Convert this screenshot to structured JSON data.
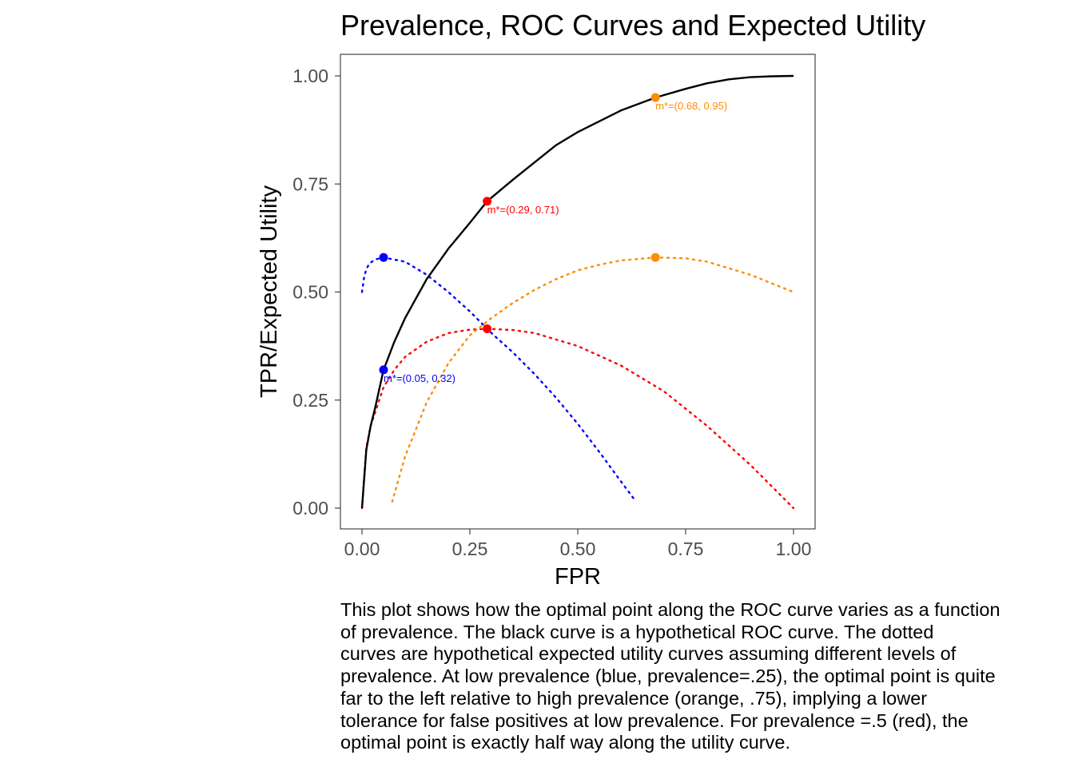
{
  "chart_data": {
    "type": "line",
    "title": "Prevalence, ROC Curves and Expected Utility",
    "xlabel": "FPR",
    "ylabel": "TPR/Expected Utility",
    "xlim": [
      0,
      1
    ],
    "ylim": [
      0,
      1
    ],
    "x_ticks": [
      "0.00",
      "0.25",
      "0.50",
      "0.75",
      "1.00"
    ],
    "y_ticks": [
      "0.00",
      "0.25",
      "0.50",
      "0.75",
      "1.00"
    ],
    "grid": false,
    "legend": "none",
    "roc_curve": {
      "color": "#000000",
      "style": "solid",
      "x": [
        0.0,
        0.01,
        0.02,
        0.03,
        0.05,
        0.075,
        0.1,
        0.15,
        0.2,
        0.25,
        0.29,
        0.35,
        0.4,
        0.45,
        0.5,
        0.55,
        0.6,
        0.68,
        0.75,
        0.8,
        0.85,
        0.9,
        0.95,
        1.0
      ],
      "y": [
        0.0,
        0.135,
        0.19,
        0.23,
        0.32,
        0.385,
        0.44,
        0.53,
        0.6,
        0.66,
        0.71,
        0.76,
        0.8,
        0.84,
        0.87,
        0.895,
        0.92,
        0.95,
        0.97,
        0.983,
        0.992,
        0.997,
        0.999,
        1.0
      ]
    },
    "utility_curves": [
      {
        "color": "#0000ff",
        "style": "dotted",
        "x": [
          0.0,
          0.005,
          0.01,
          0.015,
          0.02,
          0.03,
          0.05,
          0.1,
          0.15,
          0.2,
          0.25,
          0.3,
          0.35,
          0.4,
          0.45,
          0.5,
          0.55,
          0.6,
          0.635
        ],
        "y": [
          0.5,
          0.535,
          0.553,
          0.562,
          0.568,
          0.575,
          0.58,
          0.57,
          0.54,
          0.5,
          0.455,
          0.405,
          0.36,
          0.31,
          0.255,
          0.195,
          0.13,
          0.062,
          0.015
        ]
      },
      {
        "color": "#ff0000",
        "style": "dotted",
        "x": [
          0.0,
          0.005,
          0.01,
          0.02,
          0.03,
          0.05,
          0.075,
          0.1,
          0.15,
          0.2,
          0.25,
          0.29,
          0.35,
          0.4,
          0.5,
          0.6,
          0.7,
          0.8,
          0.9,
          1.0
        ],
        "y": [
          0.0,
          0.07,
          0.14,
          0.19,
          0.22,
          0.28,
          0.32,
          0.35,
          0.385,
          0.405,
          0.413,
          0.415,
          0.412,
          0.405,
          0.375,
          0.33,
          0.27,
          0.19,
          0.1,
          0.0
        ]
      },
      {
        "color": "#ff8c00",
        "style": "dotted",
        "x": [
          0.07,
          0.1,
          0.15,
          0.2,
          0.25,
          0.3,
          0.35,
          0.4,
          0.45,
          0.5,
          0.55,
          0.6,
          0.68,
          0.75,
          0.8,
          0.85,
          0.9,
          0.95,
          1.0
        ],
        "y": [
          0.015,
          0.12,
          0.245,
          0.335,
          0.4,
          0.44,
          0.475,
          0.505,
          0.53,
          0.55,
          0.563,
          0.573,
          0.58,
          0.578,
          0.57,
          0.555,
          0.54,
          0.52,
          0.5
        ]
      }
    ],
    "points": [
      {
        "x": 0.05,
        "y": 0.32,
        "color": "#0000ff",
        "label": "m*=(0.05, 0.32)"
      },
      {
        "x": 0.05,
        "y": 0.58,
        "color": "#0000ff",
        "label": ""
      },
      {
        "x": 0.29,
        "y": 0.71,
        "color": "#ff0000",
        "label": "m*=(0.29, 0.71)"
      },
      {
        "x": 0.29,
        "y": 0.415,
        "color": "#ff0000",
        "label": ""
      },
      {
        "x": 0.68,
        "y": 0.95,
        "color": "#ff8c00",
        "label": "m*=(0.68, 0.95)"
      },
      {
        "x": 0.68,
        "y": 0.58,
        "color": "#ff8c00",
        "label": ""
      }
    ]
  },
  "caption": {
    "lines": [
      "This plot shows how the optimal point along the ROC curve varies as a function",
      "of prevalence. The black curve is a hypothetical ROC curve. The dotted",
      "curves are hypothetical expected utility curves assuming different levels of",
      "prevalence. At low prevalence (blue, prevalence=.25), the optimal point is quite",
      "far to the left relative to high prevalence (orange, .75), implying a lower",
      "tolerance for false positives at low prevalence. For prevalence =.5 (red), the",
      "optimal point is exactly half way along the utility curve."
    ]
  }
}
